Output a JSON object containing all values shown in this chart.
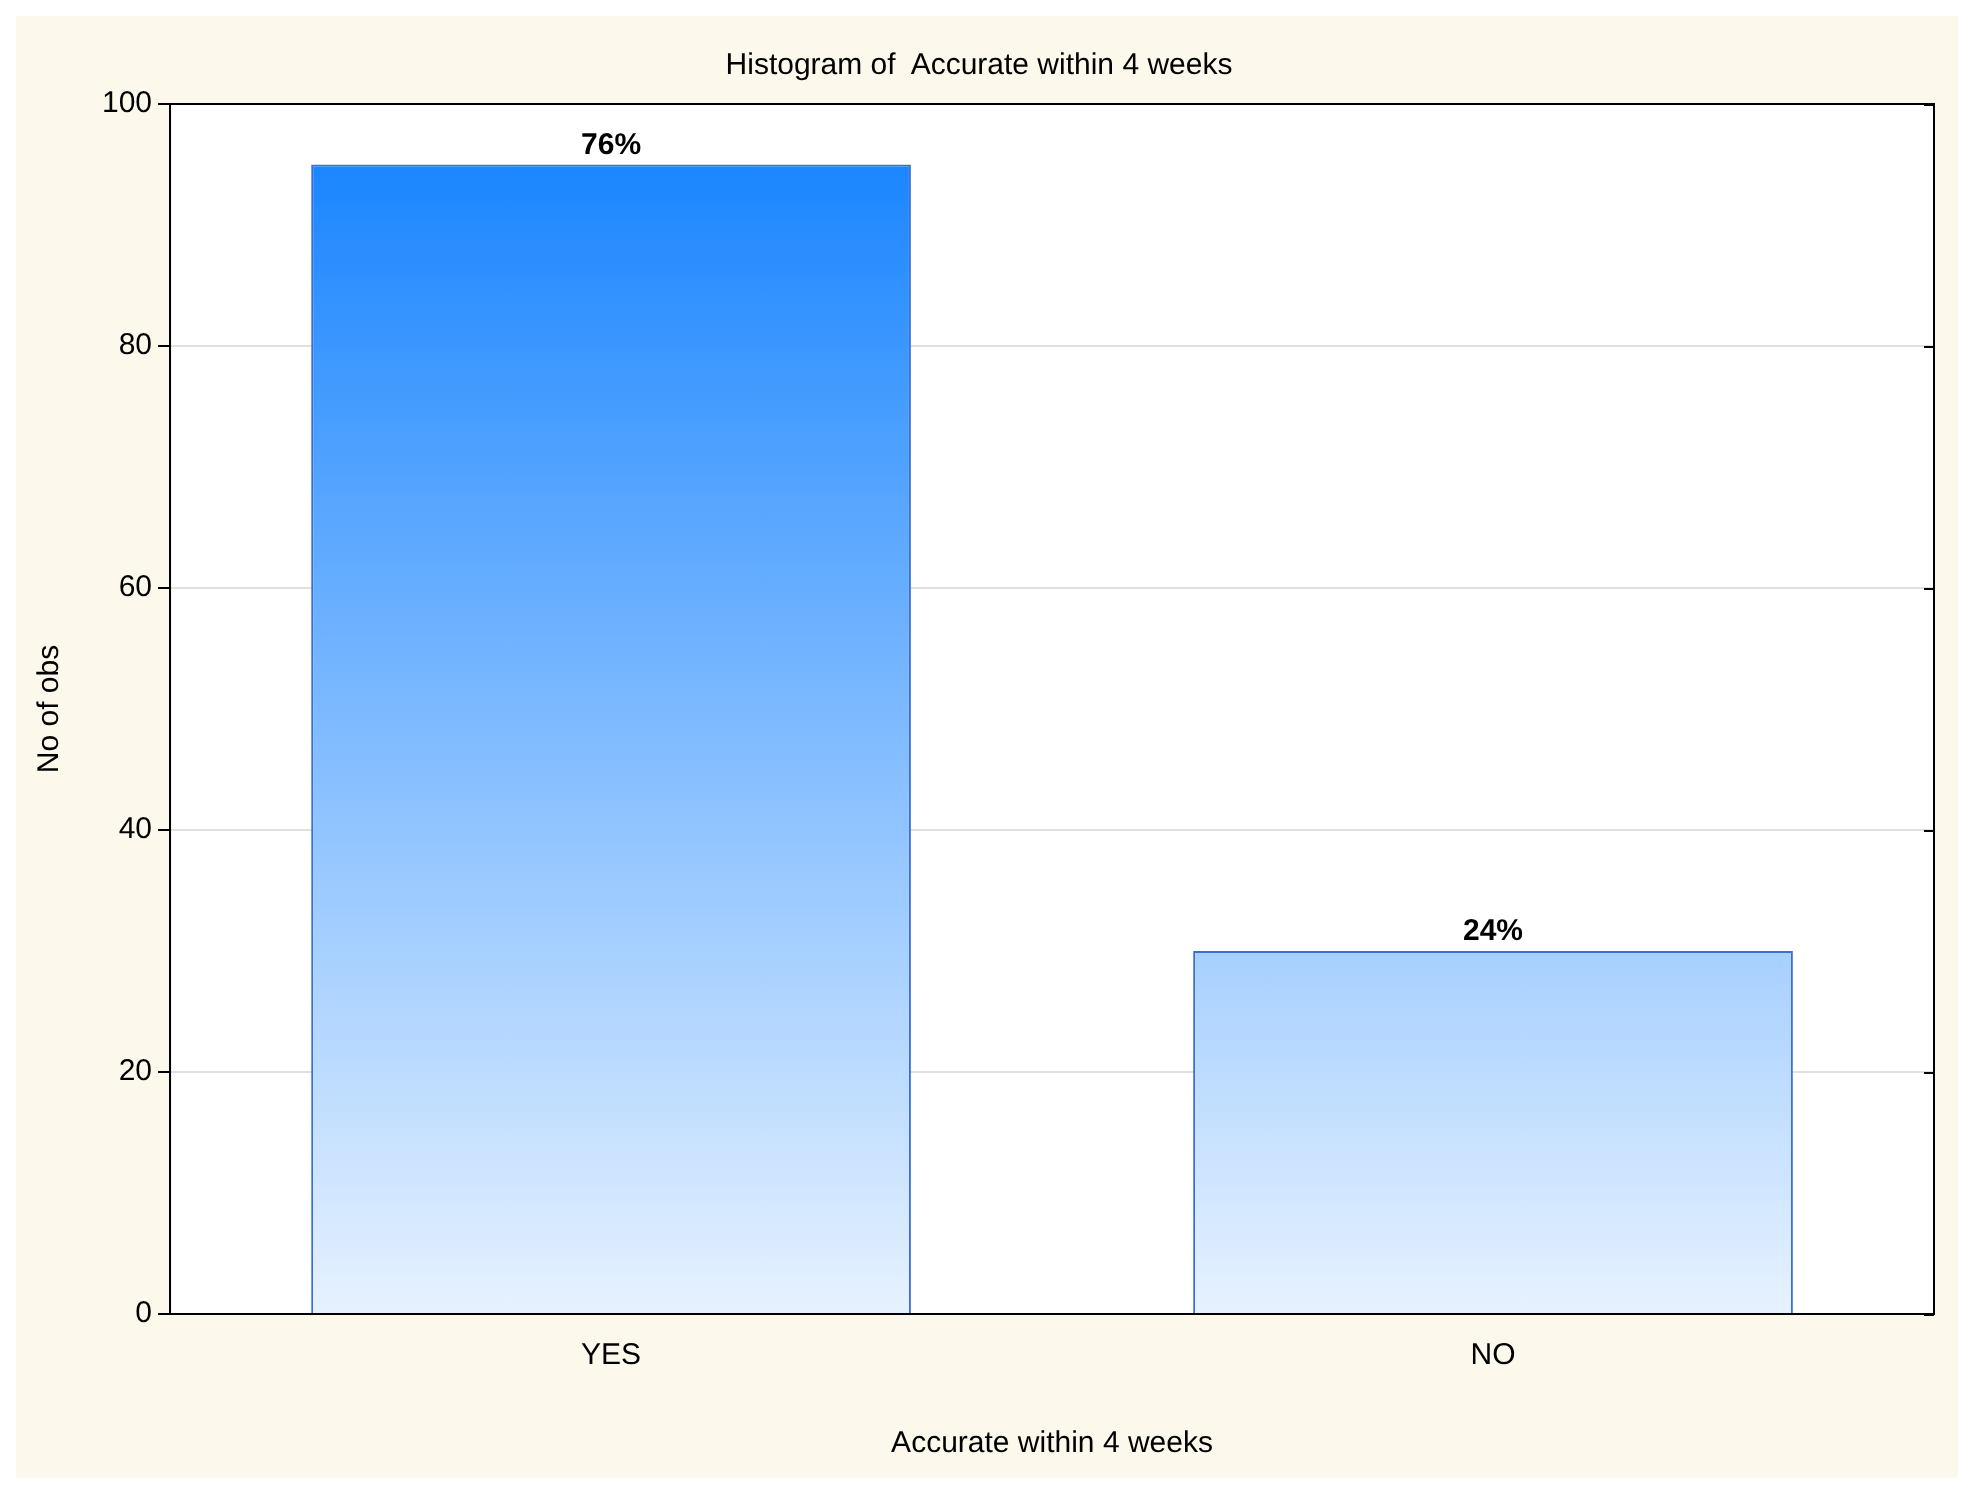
{
  "chart_data": {
    "type": "bar",
    "title": "Histogram of  Accurate within 4 weeks",
    "xlabel": "Accurate within 4 weeks",
    "ylabel": "No of obs",
    "categories": [
      "YES",
      "NO"
    ],
    "values": [
      95,
      30
    ],
    "color": "#1080ff",
    "annotations": [
      {
        "text": "76%",
        "x": "YES",
        "y": 95
      },
      {
        "text": "24%",
        "x": "NO",
        "y": 30
      }
    ],
    "ylim": [
      0,
      100
    ],
    "yticks": [
      0,
      20,
      40,
      60,
      80,
      100
    ],
    "grid": "y",
    "legend": false
  }
}
